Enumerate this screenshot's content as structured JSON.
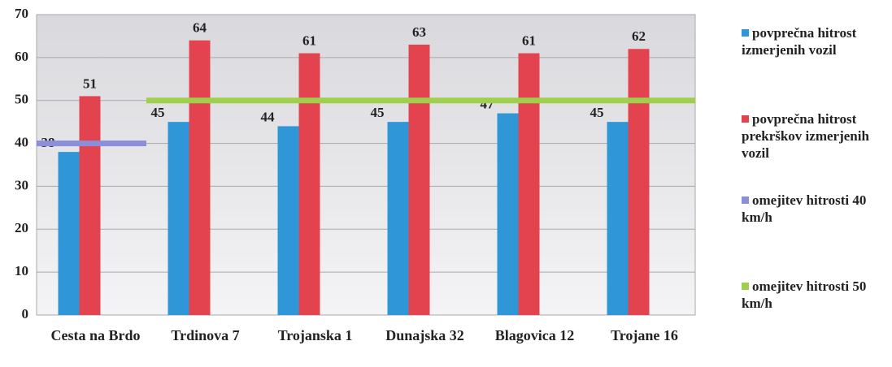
{
  "chart_data": {
    "type": "bar",
    "categories": [
      "Cesta na Brdo",
      "Trdinova 7",
      "Trojanska 1",
      "Dunajska 32",
      "Blagovica 12",
      "Trojane 16"
    ],
    "series": [
      {
        "name": "povprečna hitrost izmerjenih vozil",
        "type": "bar",
        "color": "#2f97d8",
        "values": [
          38,
          45,
          44,
          45,
          47,
          45
        ]
      },
      {
        "name": "povprečna hitrost prekrškov izmerjenih vozil",
        "type": "bar",
        "color": "#e2434f",
        "values": [
          51,
          64,
          61,
          63,
          61,
          62
        ]
      },
      {
        "name": "omejitev hitrosti 40 km/h",
        "type": "line",
        "color": "#8b8fd8",
        "values": [
          40,
          null,
          null,
          null,
          null,
          null
        ]
      },
      {
        "name": "omejitev hitrosti 50 km/h",
        "type": "line",
        "color": "#9fcf4c",
        "values": [
          null,
          50,
          50,
          50,
          50,
          50
        ]
      }
    ],
    "ylim": [
      0,
      70
    ],
    "yticks": [
      0,
      10,
      20,
      30,
      40,
      50,
      60,
      70
    ],
    "grid": true,
    "legend": "right"
  }
}
